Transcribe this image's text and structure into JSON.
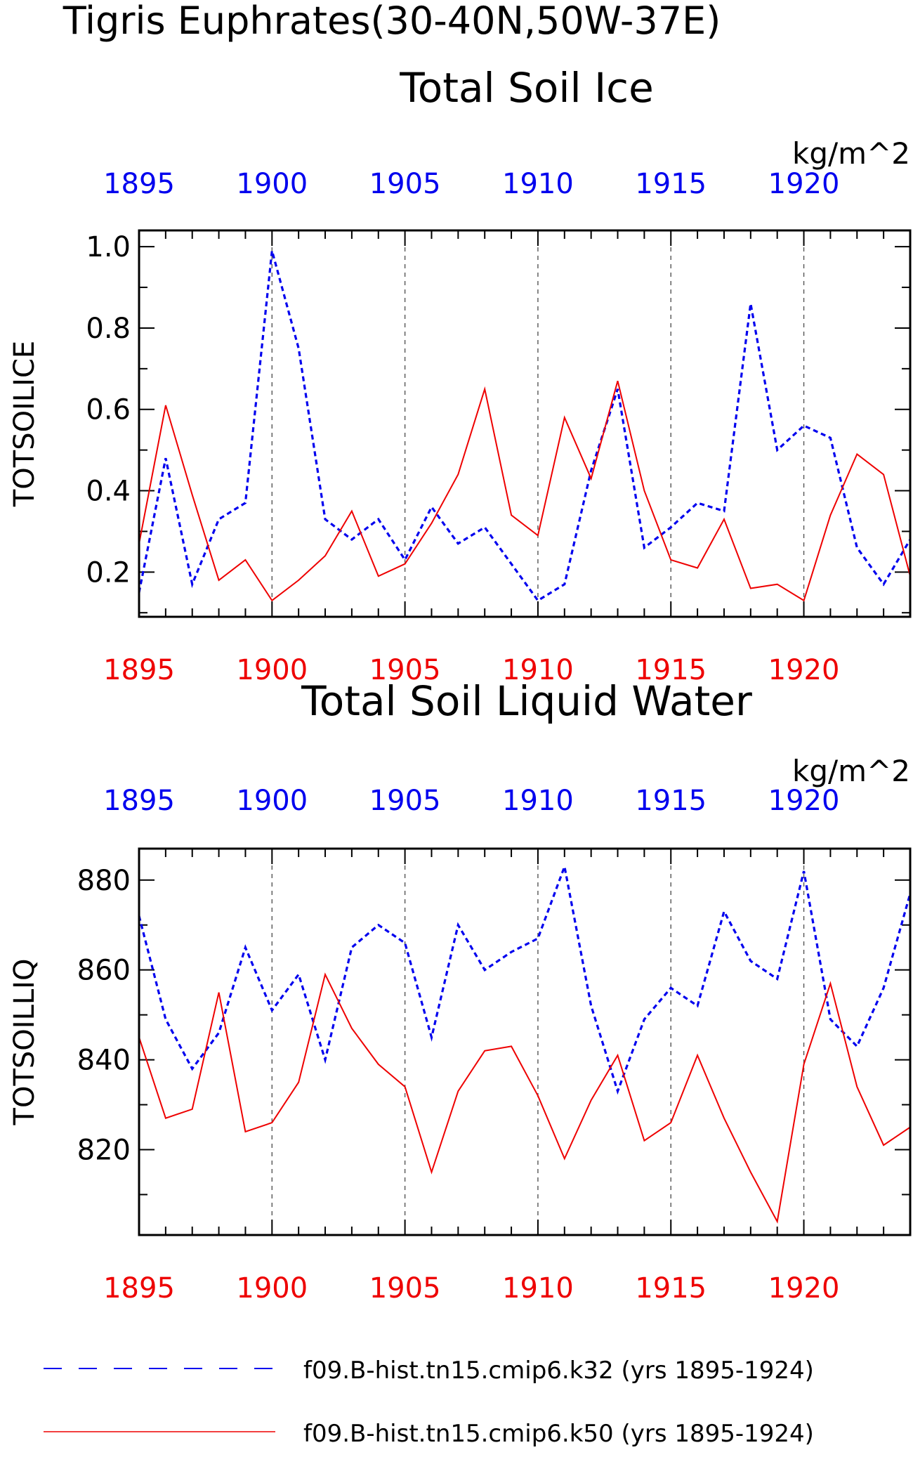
{
  "page_title": "Tigris Euphrates(30-40N,50W-37E)",
  "colors": {
    "series_a": "#0000ee",
    "series_b": "#ee0000",
    "axis": "#000000",
    "grid": "#555555"
  },
  "legend": [
    {
      "label": "f09.B-hist.tn15.cmip6.k32 (yrs 1895-1924)",
      "style": "dashed",
      "color": "#0000ee"
    },
    {
      "label": "f09.B-hist.tn15.cmip6.k50 (yrs 1895-1924)",
      "style": "solid",
      "color": "#ee0000"
    }
  ],
  "chart_data": [
    {
      "type": "line",
      "title": "Total Soil Ice",
      "ylabel": "TOTSOILICE",
      "units": "kg/m^2",
      "xlim": [
        1895,
        1924
      ],
      "ylim": [
        0.09,
        1.04
      ],
      "yticks": [
        0.2,
        0.4,
        0.6,
        0.8,
        1.0
      ],
      "ytick_labels": [
        "0.2",
        "0.4",
        "0.6",
        "0.8",
        "1.0"
      ],
      "xticks": [
        1895,
        1900,
        1905,
        1910,
        1915,
        1920
      ],
      "xtick_labels": [
        "1895",
        "1900",
        "1905",
        "1910",
        "1915",
        "1920"
      ],
      "grid": "vertical dashed at 1900, 1905, 1910, 1915, 1920",
      "x": [
        1895,
        1896,
        1897,
        1898,
        1899,
        1900,
        1901,
        1902,
        1903,
        1904,
        1905,
        1906,
        1907,
        1908,
        1909,
        1910,
        1911,
        1912,
        1913,
        1914,
        1915,
        1916,
        1917,
        1918,
        1919,
        1920,
        1921,
        1922,
        1923,
        1924
      ],
      "series": [
        {
          "name": "f09.B-hist.tn15.cmip6.k32",
          "style": "dashed",
          "color": "#0000ee",
          "values": [
            0.15,
            0.48,
            0.17,
            0.33,
            0.37,
            0.99,
            0.75,
            0.33,
            0.28,
            0.33,
            0.23,
            0.36,
            0.27,
            0.31,
            0.22,
            0.13,
            0.17,
            0.45,
            0.65,
            0.26,
            0.31,
            0.37,
            0.35,
            0.86,
            0.5,
            0.56,
            0.53,
            0.26,
            0.17,
            0.28
          ]
        },
        {
          "name": "f09.B-hist.tn15.cmip6.k50",
          "style": "solid",
          "color": "#ee0000",
          "values": [
            0.27,
            0.61,
            0.39,
            0.18,
            0.23,
            0.13,
            0.18,
            0.24,
            0.35,
            0.19,
            0.22,
            0.32,
            0.44,
            0.65,
            0.34,
            0.29,
            0.58,
            0.43,
            0.67,
            0.4,
            0.23,
            0.21,
            0.33,
            0.16,
            0.17,
            0.13,
            0.34,
            0.49,
            0.44,
            0.19
          ]
        }
      ]
    },
    {
      "type": "line",
      "title": "Total Soil Liquid Water",
      "ylabel": "TOTSOILLIQ",
      "units": "kg/m^2",
      "xlim": [
        1895,
        1924
      ],
      "ylim": [
        801,
        887
      ],
      "yticks": [
        820,
        840,
        860,
        880
      ],
      "ytick_labels": [
        "820",
        "840",
        "860",
        "880"
      ],
      "xticks": [
        1895,
        1900,
        1905,
        1910,
        1915,
        1920
      ],
      "xtick_labels": [
        "1895",
        "1900",
        "1905",
        "1910",
        "1915",
        "1920"
      ],
      "grid": "vertical dashed at 1900, 1905, 1910, 1915, 1920",
      "x": [
        1895,
        1896,
        1897,
        1898,
        1899,
        1900,
        1901,
        1902,
        1903,
        1904,
        1905,
        1906,
        1907,
        1908,
        1909,
        1910,
        1911,
        1912,
        1913,
        1914,
        1915,
        1916,
        1917,
        1918,
        1919,
        1920,
        1921,
        1922,
        1923,
        1924
      ],
      "series": [
        {
          "name": "f09.B-hist.tn15.cmip6.k32",
          "style": "dashed",
          "color": "#0000ee",
          "values": [
            872,
            849,
            838,
            846,
            865,
            851,
            859,
            840,
            865,
            870,
            866,
            845,
            870,
            860,
            864,
            867,
            883,
            852,
            833,
            849,
            856,
            852,
            873,
            862,
            858,
            882,
            849,
            843,
            856,
            877
          ]
        },
        {
          "name": "f09.B-hist.tn15.cmip6.k50",
          "style": "solid",
          "color": "#ee0000",
          "values": [
            845,
            827,
            829,
            855,
            824,
            826,
            835,
            859,
            847,
            839,
            834,
            815,
            833,
            842,
            843,
            832,
            818,
            831,
            841,
            822,
            826,
            841,
            827,
            815,
            804,
            839,
            857,
            834,
            821,
            825
          ]
        }
      ]
    }
  ]
}
